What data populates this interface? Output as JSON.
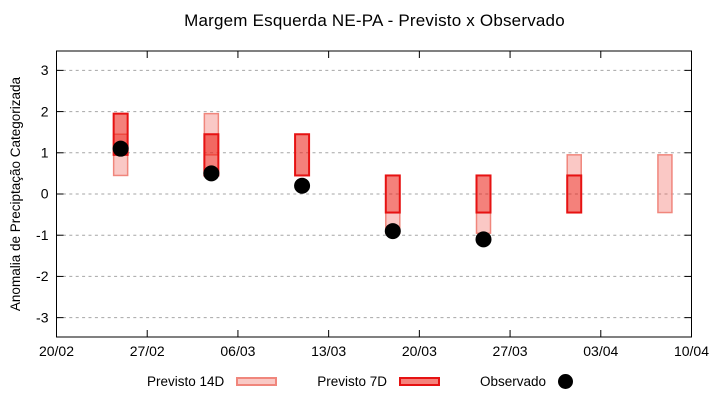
{
  "chart_data": {
    "type": "candlestick",
    "title": "Margem Esquerda NE-PA - Previsto x Observado",
    "ylabel": "Anomalia de Preciptação Categorizada",
    "ylim": [
      -3.47,
      3.47
    ],
    "yticks": [
      3,
      2,
      1,
      0,
      -1,
      -2,
      -3
    ],
    "xtick_labels": [
      "20/02",
      "27/02",
      "06/03",
      "13/03",
      "20/03",
      "27/03",
      "03/04",
      "10/04"
    ],
    "xtick_interval_days": 7,
    "xspan_days": 49,
    "grid": "horizontal-dashed",
    "groups": [
      {
        "date_approx": "25/02",
        "day": 4.95,
        "previsto_14d": [
          0.45,
          1.45
        ],
        "previsto_7d": [
          0.95,
          1.95
        ],
        "observado": 1.1
      },
      {
        "date_approx": "03/03",
        "day": 11.95,
        "previsto_14d": [
          0.95,
          1.95
        ],
        "previsto_7d": [
          0.45,
          1.45
        ],
        "observado": 0.5
      },
      {
        "date_approx": "10/03",
        "day": 18.95,
        "previsto_14d": null,
        "previsto_7d": [
          0.45,
          1.45
        ],
        "observado": 0.2
      },
      {
        "date_approx": "17/03",
        "day": 25.95,
        "previsto_14d": [
          -0.95,
          -0.45
        ],
        "previsto_7d": [
          -0.45,
          0.45
        ],
        "observado": -0.9
      },
      {
        "date_approx": "24/03",
        "day": 32.95,
        "previsto_14d": [
          -0.95,
          -0.45
        ],
        "previsto_7d": [
          -0.45,
          0.45
        ],
        "observado": -1.1
      },
      {
        "date_approx": "31/03",
        "day": 39.95,
        "previsto_14d": [
          0.45,
          0.95
        ],
        "previsto_7d": [
          -0.45,
          0.45
        ],
        "observado": null
      },
      {
        "date_approx": "07/04",
        "day": 46.95,
        "previsto_14d": [
          -0.45,
          0.95
        ],
        "previsto_7d": null,
        "observado": null
      }
    ],
    "colors": {
      "previsto_14d_fill": "rgba(240,85,75,0.32)",
      "previsto_14d_border": "#f0867c",
      "previsto_7d_fill": "rgba(235,25,15,0.55)",
      "previsto_7d_border": "#e61212",
      "previsto_14d_swatch_fill": "#f9c9c5",
      "previsto_7d_swatch_fill": "#f5827b",
      "observado": "#000000",
      "grid": "#a6a6a6",
      "axis": "#000000"
    }
  },
  "legend": {
    "items": [
      {
        "label": "Previsto 14D",
        "swatch": "previsto_14d"
      },
      {
        "label": "Previsto 7D",
        "swatch": "previsto_7d"
      },
      {
        "label": "Observado",
        "swatch": "observado"
      }
    ]
  }
}
